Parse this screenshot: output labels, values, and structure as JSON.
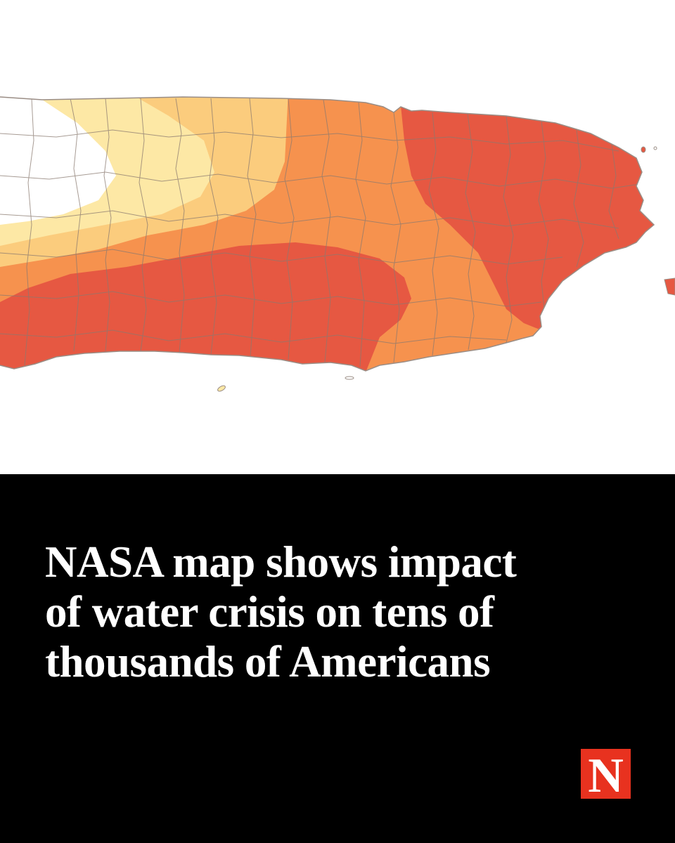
{
  "map": {
    "colors": {
      "background": "#ffffff",
      "no_category": "#ffffff",
      "light_yellow": "#fde8a5",
      "yellow_orange": "#fbcc7d",
      "orange": "#f6924e",
      "red_orange": "#e65842",
      "boundary_lines": "#8a7a70",
      "outline": "#9a8d85"
    },
    "regions": [
      {
        "name": "west",
        "color": "no_category"
      },
      {
        "name": "northwest-inner",
        "color": "light_yellow"
      },
      {
        "name": "northwest-outer",
        "color": "yellow_orange"
      },
      {
        "name": "central",
        "color": "orange"
      },
      {
        "name": "south",
        "color": "red_orange"
      },
      {
        "name": "northeast",
        "color": "red_orange"
      }
    ]
  },
  "headline": {
    "lines": [
      "NASA map shows impact",
      "of water crisis on tens of",
      "thousands of Americans"
    ]
  },
  "brand": {
    "logo_letter": "N",
    "logo_color": "#e8321f"
  }
}
